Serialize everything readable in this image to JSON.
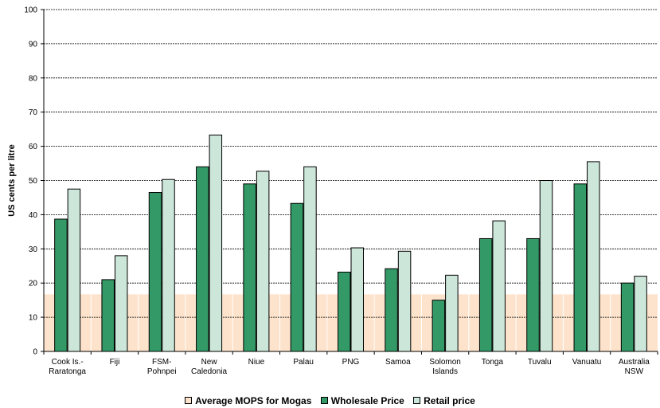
{
  "chart_data": {
    "type": "bar",
    "ylabel": "US cents per litre",
    "ylim": [
      0,
      100
    ],
    "yticks": [
      0,
      10,
      20,
      30,
      40,
      50,
      60,
      70,
      80,
      90,
      100
    ],
    "grid": true,
    "categories": [
      [
        "Cook Is.-",
        "Raratonga"
      ],
      [
        "Fiji"
      ],
      [
        "FSM-",
        "Pohnpei"
      ],
      [
        "New",
        "Caledonia"
      ],
      [
        "Niue"
      ],
      [
        "Palau"
      ],
      [
        "PNG"
      ],
      [
        "Samoa"
      ],
      [
        "Solomon",
        "Islands"
      ],
      [
        "Tonga"
      ],
      [
        "Tuvalu"
      ],
      [
        "Vanuatu"
      ],
      [
        "Australia",
        "NSW"
      ]
    ],
    "background_band": {
      "name": "Average MOPS for Mogas",
      "value": 16.7,
      "color": "#fde3cb"
    },
    "series": [
      {
        "name": "Wholesale Price",
        "color": "#339966",
        "values": [
          38.7,
          21.0,
          46.5,
          54.0,
          49.0,
          43.3,
          23.2,
          24.2,
          15.0,
          33.0,
          33.0,
          49.0,
          20.0
        ]
      },
      {
        "name": "Retail price",
        "color": "#cce6d9",
        "values": [
          47.5,
          28.0,
          50.3,
          63.3,
          52.7,
          54.0,
          30.3,
          29.3,
          22.3,
          38.2,
          50.0,
          55.5,
          22.0
        ]
      }
    ],
    "legend_position": "bottom"
  },
  "legend": {
    "items": [
      {
        "label": "Average MOPS for Mogas",
        "color": "#fde3cb"
      },
      {
        "label": "Wholesale Price",
        "color": "#339966"
      },
      {
        "label": "Retail price",
        "color": "#cce6d9"
      }
    ]
  }
}
